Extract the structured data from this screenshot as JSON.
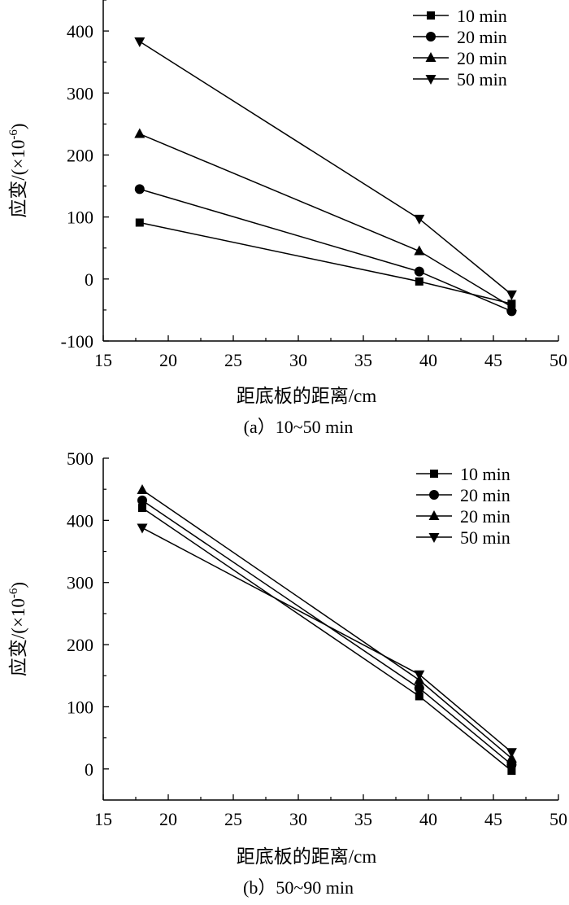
{
  "chart_data": [
    {
      "type": "line",
      "xlabel": "距底板的距离/cm",
      "ylabel": "应变/(×10",
      "ylabel_exponent": "-6",
      "ylabel_close": ")",
      "caption": "(a）10~50 min",
      "xlim": [
        15,
        50
      ],
      "ylim": [
        -100,
        450
      ],
      "xticks": [
        15,
        20,
        25,
        30,
        35,
        40,
        45,
        50
      ],
      "yticks": [
        -100,
        0,
        100,
        200,
        300,
        400
      ],
      "grid": false,
      "legend_position": "top-right",
      "series": [
        {
          "name": "10 min",
          "marker": "square",
          "x": [
            17.8,
            39.3,
            46.4
          ],
          "y": [
            91,
            -4,
            -40
          ]
        },
        {
          "name": "20 min",
          "marker": "circle",
          "x": [
            17.8,
            39.3,
            46.4
          ],
          "y": [
            145,
            12,
            -52
          ]
        },
        {
          "name": "20 min",
          "marker": "triangle-up",
          "x": [
            17.8,
            39.3,
            46.4
          ],
          "y": [
            234,
            45,
            -45
          ]
        },
        {
          "name": "50 min",
          "marker": "triangle-down",
          "x": [
            17.8,
            39.3,
            46.4
          ],
          "y": [
            383,
            97,
            -25
          ]
        }
      ]
    },
    {
      "type": "line",
      "xlabel": "距底板的距离/cm",
      "ylabel": "应变/(×10",
      "ylabel_exponent": "-6",
      "ylabel_close": ")",
      "caption": "(b）50~90 min",
      "xlim": [
        15,
        50
      ],
      "ylim": [
        -50,
        500
      ],
      "xticks": [
        15,
        20,
        25,
        30,
        35,
        40,
        45,
        50
      ],
      "yticks": [
        0,
        100,
        200,
        300,
        400,
        500
      ],
      "grid": false,
      "legend_position": "top-right",
      "series": [
        {
          "name": "10 min",
          "marker": "square",
          "x": [
            18,
            39.3,
            46.4
          ],
          "y": [
            420,
            117,
            -3
          ]
        },
        {
          "name": "20 min",
          "marker": "circle",
          "x": [
            18,
            39.3,
            46.4
          ],
          "y": [
            432,
            130,
            7
          ]
        },
        {
          "name": "20 min",
          "marker": "triangle-up",
          "x": [
            18,
            39.3,
            46.4
          ],
          "y": [
            449,
            143,
            17
          ]
        },
        {
          "name": "50 min",
          "marker": "triangle-down",
          "x": [
            18,
            39.3,
            46.4
          ],
          "y": [
            388,
            152,
            27
          ]
        }
      ]
    }
  ]
}
